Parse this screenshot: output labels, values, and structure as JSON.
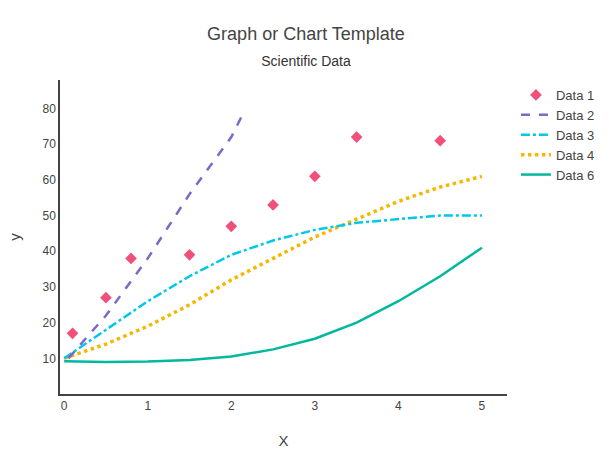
{
  "chart_data": {
    "type": "line",
    "title": "Graph or Chart Template",
    "subtitle": "Scientific Data",
    "x_label": "X",
    "y_label": "y",
    "xlim": [
      -0.05,
      5.3
    ],
    "ylim": [
      0,
      88
    ],
    "xticks": [
      0,
      1,
      2,
      3,
      4,
      5
    ],
    "yticks": [
      10,
      20,
      30,
      40,
      50,
      60,
      70,
      80
    ],
    "grid": false,
    "legend": "right",
    "series": [
      {
        "name": "Data 1",
        "type": "scatter",
        "marker": "diamond",
        "color": "#f0507a",
        "x": [
          0.1,
          0.5,
          0.8,
          1.5,
          2.0,
          2.5,
          3.0,
          3.5,
          4.5
        ],
        "values": [
          17,
          27,
          38,
          39,
          47,
          53,
          61,
          72,
          71
        ]
      },
      {
        "name": "Data 2",
        "type": "line",
        "line_style": "dash",
        "color": "#7b68c8",
        "x": [
          0.05,
          0.5,
          1.0,
          1.5,
          2.0,
          2.15
        ],
        "values": [
          10,
          22,
          38,
          56,
          72,
          79
        ]
      },
      {
        "name": "Data 3",
        "type": "line",
        "line_style": "dashdot",
        "color": "#00c8e8",
        "x": [
          0.0,
          0.5,
          1.0,
          1.5,
          2.0,
          2.5,
          3.0,
          3.5,
          4.0,
          4.5,
          5.0
        ],
        "values": [
          10,
          18,
          26,
          33,
          39,
          43,
          46,
          48,
          49,
          50,
          50
        ]
      },
      {
        "name": "Data 4",
        "type": "line",
        "line_style": "dot",
        "color": "#f5b800",
        "x": [
          0.0,
          0.5,
          1.0,
          1.5,
          2.0,
          2.5,
          3.0,
          3.5,
          4.0,
          4.5,
          5.0
        ],
        "values": [
          10,
          14,
          19,
          25,
          32,
          38,
          44,
          49,
          54,
          58,
          61
        ]
      },
      {
        "name": "Data 6",
        "type": "line",
        "line_style": "solid",
        "color": "#00b89c",
        "x": [
          0.0,
          0.5,
          1.0,
          1.5,
          2.0,
          2.5,
          3.0,
          3.5,
          4.0,
          4.5,
          5.0
        ],
        "values": [
          9.2,
          9.0,
          9.1,
          9.5,
          10.5,
          12.5,
          15.5,
          20,
          26,
          33,
          41
        ]
      }
    ]
  }
}
